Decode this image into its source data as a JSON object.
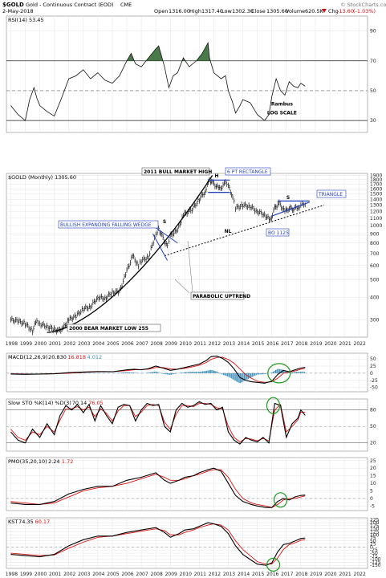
{
  "header": {
    "symbol": "$GOLD",
    "name": "Gold - Continuous Contract (EOD)",
    "exchange": "CME",
    "date": "2-May-2018",
    "open_label": "Open",
    "open": "1316.00",
    "high_label": "High",
    "high": "1317.40",
    "low_label": "Low",
    "low": "1302.30",
    "close_label": "Close",
    "close": "1305.60",
    "volume_label": "Volume",
    "volume": "620.5K",
    "chg_label": "Chg",
    "chg": "-13.60",
    "chg_pct": "(-1.03%)",
    "watermark": "© StockCharts.com",
    "chg_arrow_icon": "down-triangle-icon"
  },
  "colors": {
    "price": "#000000",
    "signal": "#e01010",
    "hist": "#3c8fb8",
    "wedge": "#1f3fbf",
    "circle": "#1a9a1a",
    "rsi_fill": "#4a7a4a"
  },
  "chart_data": [
    {
      "type": "line",
      "panel": "rsi",
      "legend": "RSI(14) 53.45",
      "yticks": [
        30,
        50,
        70,
        90
      ],
      "ylim": [
        22,
        100
      ],
      "x": [
        1998.0,
        1998.5,
        1999.0,
        1999.3,
        1999.6,
        1999.8,
        2000.0,
        2000.5,
        2001.0,
        2001.5,
        2002.0,
        2002.5,
        2003.0,
        2003.5,
        2004.0,
        2004.5,
        2005.0,
        2005.5,
        2006.0,
        2006.3,
        2006.6,
        2007.0,
        2007.5,
        2008.0,
        2008.2,
        2008.6,
        2008.9,
        2009.2,
        2009.5,
        2009.9,
        2010.3,
        2010.8,
        2011.2,
        2011.6,
        2011.7,
        2012.0,
        2012.5,
        2012.8,
        2013.0,
        2013.3,
        2013.5,
        2013.8,
        2014.0,
        2014.5,
        2015.0,
        2015.5,
        2015.8,
        2016.0,
        2016.3,
        2016.6,
        2016.9,
        2017.2,
        2017.5,
        2017.8,
        2018.0,
        2018.3
      ],
      "values": [
        40,
        34,
        30,
        44,
        52,
        45,
        40,
        36,
        33,
        45,
        58,
        60,
        64,
        58,
        62,
        57,
        55,
        60,
        70,
        75,
        68,
        66,
        72,
        78,
        80,
        66,
        52,
        60,
        62,
        72,
        66,
        70,
        75,
        82,
        72,
        62,
        58,
        60,
        50,
        42,
        35,
        40,
        44,
        42,
        34,
        30,
        34,
        46,
        58,
        50,
        47,
        56,
        53,
        52,
        55,
        53
      ],
      "ann": [
        {
          "text": "Rambus",
          "x": 2016.7,
          "y": 40
        },
        {
          "text": "LOG SCALE",
          "x": 2016.7,
          "y": 34
        }
      ]
    },
    {
      "type": "ohlc",
      "panel": "price",
      "legend": "$GOLD (Monthly) 1305.60",
      "ylog": true,
      "yticks": [
        300,
        400,
        500,
        600,
        700,
        800,
        900,
        1000,
        1100,
        1200,
        1300,
        1400,
        1500,
        1600,
        1700,
        1800,
        1900
      ],
      "ylim": [
        240,
        1950
      ],
      "xticks": [
        "1998",
        "1999",
        "2000",
        "2001",
        "2002",
        "2003",
        "2004",
        "2005",
        "2006",
        "2007",
        "2008",
        "2009",
        "2010",
        "2011",
        "2012",
        "2013",
        "2014",
        "2015",
        "2016",
        "2017",
        "2018",
        "2019",
        "2020",
        "2021",
        "2022"
      ],
      "x": [
        1998.0,
        1998.5,
        1999.0,
        1999.5,
        1999.8,
        2000.0,
        2000.5,
        2001.0,
        2001.3,
        2001.6,
        2002.0,
        2002.5,
        2003.0,
        2003.5,
        2004.0,
        2004.5,
        2005.0,
        2005.5,
        2006.0,
        2006.4,
        2006.8,
        2007.0,
        2007.5,
        2008.0,
        2008.2,
        2008.5,
        2008.8,
        2009.0,
        2009.5,
        2009.9,
        2010.5,
        2011.0,
        2011.4,
        2011.7,
        2012.0,
        2012.4,
        2012.8,
        2013.0,
        2013.3,
        2013.5,
        2014.0,
        2014.5,
        2015.0,
        2015.5,
        2015.9,
        2016.2,
        2016.5,
        2016.9,
        2017.2,
        2017.5,
        2017.9,
        2018.1,
        2018.3
      ],
      "values": [
        300,
        295,
        285,
        260,
        300,
        285,
        275,
        265,
        260,
        270,
        300,
        315,
        345,
        355,
        400,
        395,
        425,
        430,
        560,
        680,
        600,
        640,
        670,
        900,
        960,
        850,
        760,
        880,
        940,
        1150,
        1230,
        1400,
        1550,
        1800,
        1700,
        1600,
        1720,
        1660,
        1450,
        1250,
        1300,
        1280,
        1200,
        1150,
        1070,
        1250,
        1330,
        1200,
        1250,
        1240,
        1280,
        1340,
        1305
      ],
      "ann": [
        {
          "text": "2011 BULL MARKET HIGH"
        },
        {
          "text": "H"
        },
        {
          "text": "6 PT RECTANGLE"
        },
        {
          "text": "S"
        },
        {
          "text": "S"
        },
        {
          "text": "TRIANGLE"
        },
        {
          "text": "BULLISH EXPANDING FALLING WEDGE"
        },
        {
          "text": "NL"
        },
        {
          "text": "BO 1125"
        },
        {
          "text": "PARABOLIC UPTREND"
        },
        {
          "text": "2000 BEAR MARKET LOW 255"
        }
      ]
    },
    {
      "type": "line",
      "panel": "macd",
      "legend_label": "MACD(12,26,9)",
      "legend_v1": "20.830",
      "legend_v2": "16.818",
      "legend_v3": "4.012",
      "yticks": [
        -50,
        -25,
        0,
        25,
        50
      ],
      "ylim": [
        -65,
        70
      ],
      "x": [
        1998.0,
        1999.0,
        2000.0,
        2001.0,
        2002.0,
        2003.0,
        2004.0,
        2005.0,
        2006.0,
        2006.5,
        2007.0,
        2007.5,
        2008.0,
        2008.5,
        2009.0,
        2009.5,
        2010.0,
        2010.5,
        2011.0,
        2011.5,
        2011.8,
        2012.2,
        2012.6,
        2013.0,
        2013.4,
        2013.8,
        2014.2,
        2014.6,
        2015.0,
        2015.5,
        2016.0,
        2016.4,
        2016.8,
        2017.2,
        2017.6,
        2018.0,
        2018.3
      ],
      "series": [
        {
          "values": [
            -3,
            -4,
            -3,
            -2,
            2,
            4,
            6,
            5,
            12,
            14,
            12,
            16,
            25,
            18,
            10,
            14,
            20,
            26,
            32,
            45,
            58,
            60,
            52,
            38,
            15,
            -15,
            -25,
            -30,
            -32,
            -35,
            -28,
            -5,
            10,
            5,
            12,
            18,
            20.83
          ]
        },
        {
          "values": [
            -2,
            -3,
            -3,
            -2,
            0,
            3,
            5,
            5,
            9,
            12,
            13,
            14,
            20,
            20,
            15,
            14,
            17,
            22,
            28,
            38,
            48,
            55,
            56,
            48,
            35,
            15,
            -5,
            -18,
            -28,
            -32,
            -30,
            -18,
            0,
            4,
            8,
            14,
            16.818
          ]
        }
      ]
    },
    {
      "type": "line",
      "panel": "sto",
      "legend_label": "Slow STO %K(14) %D(3)",
      "legend_v1": "70.14",
      "legend_v2": "76.05",
      "yticks": [
        20,
        50,
        80
      ],
      "ylim": [
        5,
        100
      ],
      "x": [
        1998.0,
        1998.5,
        1999.0,
        1999.5,
        2000.0,
        2000.5,
        2001.0,
        2001.4,
        2001.8,
        2002.2,
        2002.6,
        2003.0,
        2003.4,
        2003.8,
        2004.2,
        2004.6,
        2005.0,
        2005.4,
        2005.8,
        2006.2,
        2006.6,
        2007.0,
        2007.4,
        2007.8,
        2008.2,
        2008.6,
        2009.0,
        2009.4,
        2009.8,
        2010.2,
        2010.6,
        2011.0,
        2011.4,
        2011.8,
        2012.2,
        2012.6,
        2013.0,
        2013.4,
        2013.8,
        2014.2,
        2014.6,
        2015.0,
        2015.4,
        2015.8,
        2016.2,
        2016.6,
        2017.0,
        2017.4,
        2017.8,
        2018.0,
        2018.3
      ],
      "series": [
        {
          "values": [
            40,
            25,
            20,
            45,
            30,
            55,
            35,
            70,
            88,
            80,
            90,
            75,
            90,
            60,
            88,
            70,
            55,
            85,
            90,
            88,
            60,
            80,
            92,
            88,
            90,
            50,
            40,
            80,
            92,
            85,
            88,
            95,
            90,
            92,
            80,
            85,
            40,
            25,
            18,
            30,
            25,
            22,
            30,
            20,
            92,
            88,
            30,
            55,
            65,
            80,
            70.14
          ]
        },
        {
          "values": [
            45,
            30,
            25,
            40,
            35,
            50,
            40,
            62,
            82,
            82,
            86,
            80,
            85,
            68,
            82,
            74,
            60,
            78,
            88,
            88,
            68,
            76,
            88,
            90,
            88,
            58,
            45,
            72,
            88,
            88,
            86,
            92,
            92,
            90,
            84,
            82,
            50,
            30,
            22,
            28,
            27,
            24,
            28,
            24,
            80,
            90,
            40,
            50,
            62,
            76,
            76.05
          ]
        }
      ]
    },
    {
      "type": "line",
      "panel": "pmo",
      "legend_label": "PMO(35,20,10)",
      "legend_v1": "2.24",
      "legend_v2": "1.72",
      "yticks": [
        -5,
        0,
        5,
        10,
        15,
        20,
        25
      ],
      "ylim": [
        -8,
        27
      ],
      "x": [
        1998.0,
        1999.0,
        2000.0,
        2001.0,
        2002.0,
        2003.0,
        2004.0,
        2005.0,
        2006.0,
        2007.0,
        2008.0,
        2008.6,
        2009.0,
        2009.6,
        2010.0,
        2010.6,
        2011.0,
        2011.6,
        2012.0,
        2012.5,
        2013.0,
        2013.5,
        2014.0,
        2014.6,
        2015.0,
        2015.6,
        2016.0,
        2016.4,
        2016.8,
        2017.2,
        2017.6,
        2018.0,
        2018.3
      ],
      "series": [
        {
          "values": [
            -3,
            -4,
            -4,
            -2,
            3,
            6,
            8,
            8,
            12,
            14,
            17,
            12,
            10,
            12,
            14,
            15,
            17,
            19,
            20,
            18,
            10,
            2,
            -2,
            -4,
            -5,
            -6,
            -6,
            -2,
            0,
            -1,
            1,
            2,
            2.24
          ]
        },
        {
          "values": [
            -2,
            -3,
            -4,
            -3,
            1,
            5,
            7,
            8,
            10,
            13,
            16,
            14,
            12,
            12,
            13,
            15,
            16,
            18,
            19,
            19,
            14,
            6,
            0,
            -3,
            -4,
            -5,
            -6,
            -4,
            -1,
            0,
            0,
            1,
            1.72
          ]
        }
      ]
    },
    {
      "type": "line",
      "panel": "kst",
      "legend_label": "KST",
      "legend_v1": "74.35",
      "legend_v2": "60.17",
      "yticks": [
        -150,
        -125,
        -100,
        -75,
        -50,
        -25,
        0,
        25,
        50,
        75,
        100,
        125,
        150,
        175,
        200,
        225
      ],
      "ylim": [
        -175,
        240
      ],
      "x": [
        1998.0,
        1999.0,
        2000.0,
        2001.0,
        2002.0,
        2003.0,
        2004.0,
        2005.0,
        2006.0,
        2007.0,
        2008.0,
        2008.6,
        2009.0,
        2009.6,
        2010.0,
        2010.6,
        2011.0,
        2011.6,
        2012.0,
        2012.5,
        2013.0,
        2013.5,
        2014.0,
        2014.6,
        2015.0,
        2015.6,
        2016.0,
        2016.4,
        2016.8,
        2017.2,
        2017.6,
        2018.0,
        2018.3
      ],
      "series": [
        {
          "values": [
            -60,
            -70,
            -80,
            -60,
            10,
            60,
            90,
            90,
            120,
            140,
            160,
            120,
            80,
            110,
            140,
            150,
            170,
            200,
            190,
            170,
            110,
            10,
            -60,
            -110,
            -140,
            -150,
            -130,
            -40,
            20,
            30,
            50,
            70,
            74.35
          ]
        },
        {
          "values": [
            -50,
            -60,
            -70,
            -65,
            -10,
            40,
            80,
            90,
            110,
            130,
            150,
            135,
            100,
            100,
            120,
            140,
            160,
            180,
            190,
            180,
            140,
            50,
            -20,
            -80,
            -120,
            -140,
            -140,
            -90,
            -20,
            20,
            35,
            55,
            60.17
          ]
        }
      ]
    }
  ]
}
